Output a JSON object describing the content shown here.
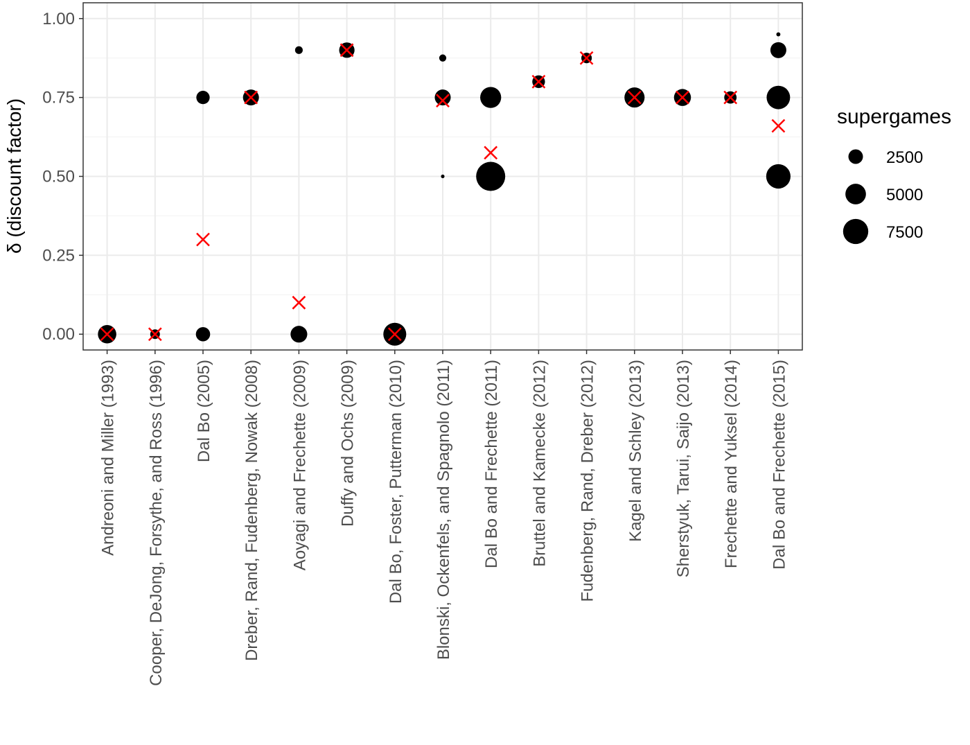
{
  "chart_data": {
    "type": "scatter",
    "ylabel": "δ (discount factor)",
    "xlabel": "",
    "ylim": [
      -0.05,
      1.05
    ],
    "yticks": [
      0.0,
      0.25,
      0.5,
      0.75,
      1.0
    ],
    "ytick_labels": [
      "0.00",
      "0.25",
      "0.50",
      "0.75",
      "1.00"
    ],
    "grid": true,
    "categories": [
      "Andreoni and Miller (1993)",
      "Cooper, DeJong, Forsythe, and Ross (1996)",
      "Dal Bo (2005)",
      "Dreber, Rand, Fudenberg, Nowak (2008)",
      "Aoyagi and Frechette (2009)",
      "Duffy and Ochs (2009)",
      "Dal Bo, Foster, Putterman (2010)",
      "Blonski, Ockenfels, and Spagnolo (2011)",
      "Dal Bo and Frechette (2011)",
      "Bruttel and Kamecke (2012)",
      "Fudenberg, Rand, Dreber (2012)",
      "Kagel and Schley (2013)",
      "Sherstyuk, Tarui, Saijo (2013)",
      "Frechette and Yuksel (2014)",
      "Dal Bo and Frechette (2015)"
    ],
    "points": [
      {
        "x": "Andreoni and Miller (1993)",
        "y": 0.0,
        "supergames": 4000
      },
      {
        "x": "Cooper, DeJong, Forsythe, and Ross (1996)",
        "y": 0.0,
        "supergames": 1100
      },
      {
        "x": "Dal Bo (2005)",
        "y": 0.0,
        "supergames": 2400
      },
      {
        "x": "Dal Bo (2005)",
        "y": 0.75,
        "supergames": 2100
      },
      {
        "x": "Dreber, Rand, Fudenberg, Nowak (2008)",
        "y": 0.75,
        "supergames": 3000
      },
      {
        "x": "Aoyagi and Frechette (2009)",
        "y": 0.0,
        "supergames": 3300
      },
      {
        "x": "Aoyagi and Frechette (2009)",
        "y": 0.9,
        "supergames": 700
      },
      {
        "x": "Duffy and Ochs (2009)",
        "y": 0.9,
        "supergames": 2800
      },
      {
        "x": "Dal Bo, Foster, Putterman (2010)",
        "y": 0.0,
        "supergames": 6200
      },
      {
        "x": "Blonski, Ockenfels, and Spagnolo (2011)",
        "y": 0.875,
        "supergames": 600
      },
      {
        "x": "Blonski, Ockenfels, and Spagnolo (2011)",
        "y": 0.75,
        "supergames": 3000
      },
      {
        "x": "Blonski, Ockenfels, and Spagnolo (2011)",
        "y": 0.5,
        "supergames": 150
      },
      {
        "x": "Dal Bo and Frechette (2011)",
        "y": 0.75,
        "supergames": 5200
      },
      {
        "x": "Dal Bo and Frechette (2011)",
        "y": 0.5,
        "supergames": 10000
      },
      {
        "x": "Bruttel and Kamecke (2012)",
        "y": 0.8,
        "supergames": 1900
      },
      {
        "x": "Fudenberg, Rand, Dreber (2012)",
        "y": 0.875,
        "supergames": 1300
      },
      {
        "x": "Kagel and Schley (2013)",
        "y": 0.75,
        "supergames": 4800
      },
      {
        "x": "Sherstyuk, Tarui, Saijo (2013)",
        "y": 0.75,
        "supergames": 3400
      },
      {
        "x": "Frechette and Yuksel (2014)",
        "y": 0.75,
        "supergames": 1800
      },
      {
        "x": "Dal Bo and Frechette (2015)",
        "y": 0.95,
        "supergames": 200
      },
      {
        "x": "Dal Bo and Frechette (2015)",
        "y": 0.9,
        "supergames": 3000
      },
      {
        "x": "Dal Bo and Frechette (2015)",
        "y": 0.75,
        "supergames": 6500
      },
      {
        "x": "Dal Bo and Frechette (2015)",
        "y": 0.5,
        "supergames": 7000
      }
    ],
    "crosses": [
      {
        "x": "Andreoni and Miller (1993)",
        "y": 0.0
      },
      {
        "x": "Cooper, DeJong, Forsythe, and Ross (1996)",
        "y": 0.0
      },
      {
        "x": "Dal Bo (2005)",
        "y": 0.3
      },
      {
        "x": "Dreber, Rand, Fudenberg, Nowak (2008)",
        "y": 0.75
      },
      {
        "x": "Aoyagi and Frechette (2009)",
        "y": 0.1
      },
      {
        "x": "Duffy and Ochs (2009)",
        "y": 0.9
      },
      {
        "x": "Dal Bo, Foster, Putterman (2010)",
        "y": 0.0
      },
      {
        "x": "Blonski, Ockenfels, and Spagnolo (2011)",
        "y": 0.74
      },
      {
        "x": "Dal Bo and Frechette (2011)",
        "y": 0.575
      },
      {
        "x": "Bruttel and Kamecke (2012)",
        "y": 0.8
      },
      {
        "x": "Fudenberg, Rand, Dreber (2012)",
        "y": 0.875
      },
      {
        "x": "Kagel and Schley (2013)",
        "y": 0.75
      },
      {
        "x": "Sherstyuk, Tarui, Saijo (2013)",
        "y": 0.75
      },
      {
        "x": "Frechette and Yuksel (2014)",
        "y": 0.75
      },
      {
        "x": "Dal Bo and Frechette (2015)",
        "y": 0.66
      }
    ],
    "point_color": "#000000",
    "cross_color": "#ff0000",
    "legend": {
      "title": "supergames",
      "position": "right",
      "entries": [
        {
          "label": "2500",
          "value": 2500
        },
        {
          "label": "5000",
          "value": 5000
        },
        {
          "label": "7500",
          "value": 7500
        }
      ]
    }
  }
}
